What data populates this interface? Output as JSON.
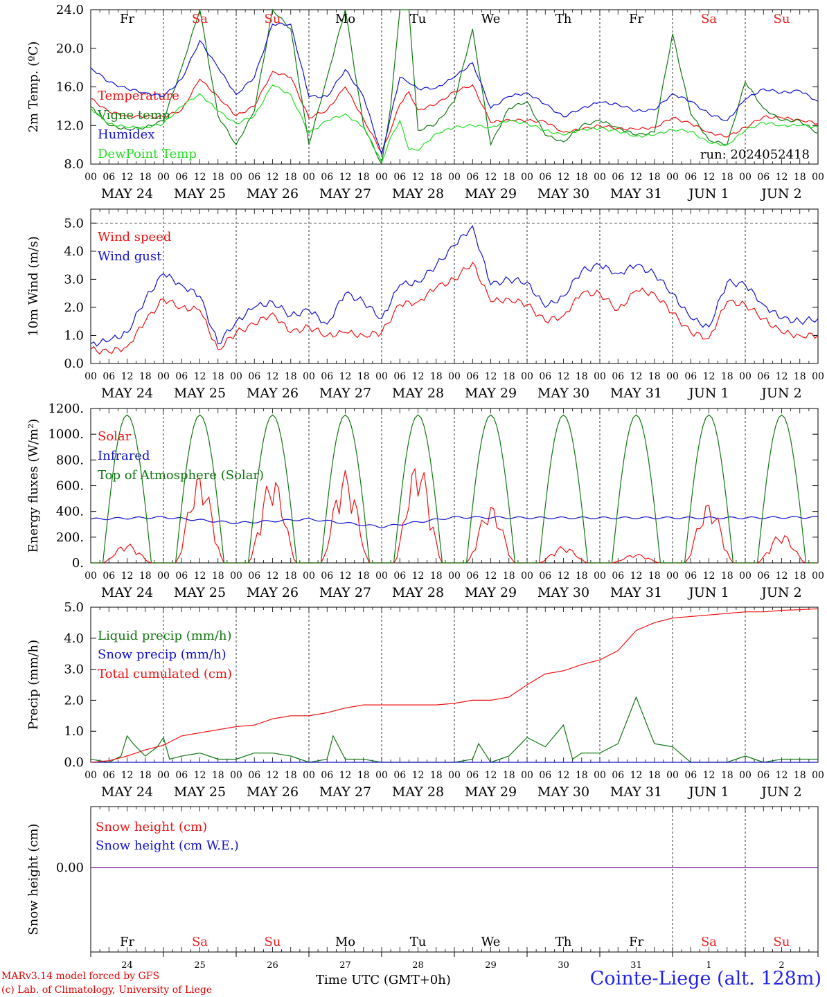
{
  "footer": {
    "credit_line1": "MARv3.14 model forced by GFS",
    "credit_line2": "(c) Lab. of Climatology, University of Liege",
    "station": "Cointe-Liege (alt. 128m)",
    "x_axis_title": "Time UTC (GMT+0h)"
  },
  "time_axis": {
    "hour_ticks": [
      "00",
      "06",
      "12",
      "18"
    ],
    "end_tick": "00",
    "dates": [
      "MAY 24",
      "MAY 25",
      "MAY 26",
      "MAY 27",
      "MAY 28",
      "MAY 29",
      "MAY 30",
      "MAY 31",
      "JUN  1",
      "JUN  2"
    ],
    "weekdays": [
      "Fr",
      "Sa",
      "Su",
      "Mo",
      "Tu",
      "We",
      "Th",
      "Fr",
      "Sa",
      "Su"
    ],
    "weekend_color": "#ee2020",
    "weekday_color": "#000000",
    "day_numbers": [
      "24",
      "25",
      "26",
      "27",
      "28",
      "29",
      "30",
      "31",
      "1",
      "2"
    ]
  },
  "chart_data": [
    {
      "id": "temperature",
      "type": "line",
      "ylabel": "2m Temp. (ºC)",
      "ylim": [
        8.0,
        24.0
      ],
      "yticks": [
        "8.0",
        "12.0",
        "16.0",
        "20.0",
        "24.0"
      ],
      "annotation": "run: 2024052418",
      "grid": "vertical day separators (dotted)",
      "legend_position": "left",
      "x_unit": "hours since MAY 24 00 UTC",
      "series": [
        {
          "name": "Temperature",
          "color": "#ee1111",
          "x": [
            0,
            6,
            12,
            18,
            24,
            30,
            36,
            42,
            48,
            54,
            60,
            66,
            72,
            78,
            84,
            90,
            96,
            99,
            102,
            105,
            108,
            114,
            120,
            126,
            132,
            138,
            144,
            150,
            156,
            162,
            168,
            174,
            180,
            186,
            192,
            198,
            204,
            210,
            216,
            222,
            228,
            234,
            240
          ],
          "y": [
            14.8,
            13.4,
            13.0,
            12.9,
            12.9,
            13.6,
            16.8,
            15.0,
            13.0,
            14.0,
            17.6,
            17.0,
            12.8,
            13.6,
            16.0,
            12.7,
            9.2,
            11.5,
            14.2,
            15.5,
            13.6,
            14.2,
            15.5,
            16.2,
            12.3,
            12.6,
            12.5,
            12.4,
            11.3,
            11.6,
            12.0,
            11.7,
            11.6,
            11.8,
            12.8,
            12.2,
            11.3,
            10.8,
            11.8,
            12.9,
            12.8,
            12.6,
            12.2
          ]
        },
        {
          "name": "Vigne temp",
          "color": "#117711",
          "x": [
            0,
            6,
            12,
            18,
            24,
            30,
            36,
            42,
            48,
            54,
            60,
            66,
            72,
            78,
            84,
            90,
            96,
            99,
            102,
            105,
            108,
            114,
            120,
            126,
            132,
            138,
            144,
            150,
            156,
            162,
            168,
            174,
            180,
            186,
            192,
            198,
            204,
            210,
            216,
            222,
            228,
            234,
            240
          ],
          "y": [
            14.0,
            12.0,
            11.6,
            11.8,
            12.5,
            18.0,
            24.0,
            13.0,
            10.0,
            13.5,
            24.0,
            22.0,
            10.0,
            17.0,
            24.0,
            12.0,
            8.0,
            14.0,
            24.0,
            24.0,
            11.5,
            12.2,
            14.5,
            22.0,
            10.0,
            13.8,
            14.5,
            11.0,
            10.3,
            12.0,
            12.5,
            11.8,
            11.0,
            11.3,
            21.5,
            13.2,
            10.5,
            10.0,
            16.5,
            13.8,
            12.5,
            12.5,
            11.2
          ]
        },
        {
          "name": "Humidex",
          "color": "#1111cc",
          "x": [
            0,
            6,
            12,
            18,
            24,
            30,
            36,
            42,
            48,
            54,
            60,
            66,
            72,
            78,
            84,
            90,
            96,
            99,
            102,
            105,
            108,
            114,
            120,
            126,
            132,
            138,
            144,
            150,
            156,
            162,
            168,
            174,
            180,
            186,
            192,
            198,
            204,
            210,
            216,
            222,
            228,
            234,
            240
          ],
          "y": [
            18.0,
            16.5,
            15.8,
            15.4,
            15.0,
            16.8,
            20.8,
            18.0,
            15.2,
            17.0,
            22.5,
            22.5,
            15.0,
            15.0,
            17.8,
            15.0,
            9.0,
            13.0,
            17.0,
            16.4,
            15.8,
            15.9,
            17.0,
            18.5,
            13.8,
            15.0,
            15.4,
            14.2,
            12.9,
            13.8,
            14.4,
            14.2,
            13.5,
            13.6,
            15.3,
            14.5,
            13.2,
            12.5,
            14.7,
            15.8,
            15.4,
            15.6,
            14.5
          ]
        },
        {
          "name": "DewPoint Temp",
          "color": "#22dd22",
          "x": [
            0,
            6,
            12,
            18,
            24,
            30,
            36,
            42,
            48,
            54,
            60,
            66,
            72,
            78,
            84,
            90,
            96,
            99,
            102,
            105,
            108,
            114,
            120,
            126,
            132,
            138,
            144,
            150,
            156,
            162,
            168,
            174,
            180,
            186,
            192,
            198,
            204,
            210,
            216,
            222,
            228,
            234,
            240
          ],
          "y": [
            13.8,
            12.2,
            11.8,
            11.8,
            12.2,
            14.0,
            15.3,
            13.5,
            12.2,
            13.0,
            16.2,
            15.2,
            11.2,
            12.5,
            13.2,
            11.8,
            8.2,
            10.8,
            12.5,
            9.5,
            9.4,
            11.2,
            11.8,
            12.0,
            11.8,
            12.5,
            12.2,
            11.5,
            11.0,
            11.6,
            11.7,
            11.4,
            10.9,
            11.0,
            11.6,
            11.4,
            10.2,
            10.0,
            11.5,
            12.3,
            12.0,
            12.0,
            11.8
          ]
        }
      ]
    },
    {
      "id": "wind",
      "type": "line",
      "ylabel": "10m Wind (m/s)",
      "ylim": [
        0.0,
        5.5
      ],
      "yticks": [
        "0.0",
        "1.0",
        "2.0",
        "3.0",
        "4.0",
        "5.0"
      ],
      "reference_line": 5.0,
      "legend_position": "left",
      "series": [
        {
          "name": "Wind speed",
          "color": "#ee1111",
          "x": [
            0,
            6,
            12,
            18,
            24,
            30,
            36,
            42,
            48,
            54,
            60,
            66,
            72,
            78,
            84,
            90,
            96,
            102,
            108,
            114,
            120,
            126,
            132,
            138,
            144,
            150,
            156,
            162,
            168,
            174,
            180,
            186,
            192,
            198,
            204,
            210,
            216,
            222,
            228,
            234,
            240
          ],
          "y": [
            0.5,
            0.4,
            0.6,
            1.5,
            2.3,
            2.0,
            1.9,
            0.5,
            1.1,
            1.4,
            1.8,
            1.1,
            1.3,
            1.0,
            1.1,
            1.0,
            1.1,
            2.1,
            2.2,
            2.7,
            3.0,
            3.6,
            2.2,
            2.3,
            2.1,
            1.5,
            1.7,
            2.5,
            2.5,
            1.9,
            2.6,
            2.5,
            1.8,
            1.1,
            0.9,
            2.2,
            2.1,
            1.6,
            1.1,
            1.0,
            1.0
          ]
        },
        {
          "name": "Wind gust",
          "color": "#1111cc",
          "x": [
            0,
            6,
            12,
            18,
            24,
            30,
            36,
            42,
            48,
            54,
            60,
            66,
            72,
            78,
            84,
            90,
            96,
            102,
            108,
            114,
            120,
            126,
            132,
            138,
            144,
            150,
            156,
            162,
            168,
            174,
            180,
            186,
            192,
            198,
            204,
            210,
            216,
            222,
            228,
            234,
            240
          ],
          "y": [
            0.7,
            0.8,
            1.1,
            2.3,
            3.2,
            2.8,
            2.4,
            0.7,
            1.5,
            2.0,
            2.2,
            1.7,
            1.9,
            1.4,
            2.5,
            2.2,
            1.6,
            2.8,
            2.9,
            3.5,
            4.2,
            4.9,
            2.8,
            3.0,
            2.9,
            2.0,
            2.4,
            3.3,
            3.5,
            3.2,
            3.5,
            3.2,
            2.5,
            1.6,
            1.3,
            2.9,
            2.8,
            2.1,
            1.6,
            1.5,
            1.6
          ]
        }
      ]
    },
    {
      "id": "energy",
      "type": "line",
      "ylabel": "Energy fluxes (W/m²)",
      "ylim": [
        0,
        1200
      ],
      "yticks": [
        "0.",
        "200.",
        "400.",
        "600.",
        "800.",
        "1000.",
        "1200."
      ],
      "legend_position": "left",
      "series": [
        {
          "name": "Solar",
          "color": "#ee1111",
          "daily_peak": [
            150,
            690,
            680,
            720,
            800,
            450,
            130,
            70,
            470,
            230
          ]
        },
        {
          "name": "Infrared",
          "color": "#1111cc",
          "x": [
            0,
            24,
            48,
            72,
            96,
            120,
            144,
            168,
            192,
            216,
            240
          ],
          "y": [
            340,
            355,
            310,
            340,
            280,
            355,
            350,
            350,
            350,
            350,
            355
          ]
        },
        {
          "name": "Top of Atmosphere (Solar)",
          "color": "#117711",
          "daily_peak": [
            1150,
            1150,
            1150,
            1150,
            1150,
            1150,
            1150,
            1150,
            1150,
            1150
          ]
        }
      ]
    },
    {
      "id": "precip",
      "type": "line",
      "ylabel": "Precip (mm/h)",
      "ylim": [
        0.0,
        5.0
      ],
      "yticks": [
        "0.0",
        "1.0",
        "2.0",
        "3.0",
        "4.0",
        "5.0"
      ],
      "legend_position": "left",
      "series": [
        {
          "name": "Liquid precip (mm/h)",
          "color": "#117711",
          "x": [
            0,
            6,
            10,
            12,
            14,
            18,
            22,
            24,
            26,
            30,
            36,
            42,
            48,
            54,
            60,
            66,
            72,
            78,
            80,
            84,
            90,
            96,
            102,
            108,
            114,
            120,
            126,
            128,
            132,
            138,
            144,
            150,
            156,
            159,
            162,
            168,
            174,
            180,
            186,
            192,
            198,
            204,
            210,
            216,
            222,
            228,
            234,
            240
          ],
          "y": [
            0.1,
            0.0,
            0.2,
            0.85,
            0.6,
            0.2,
            0.5,
            0.8,
            0.1,
            0.2,
            0.3,
            0.1,
            0.1,
            0.3,
            0.3,
            0.2,
            0.0,
            0.1,
            0.85,
            0.1,
            0.1,
            0.0,
            0.0,
            0.0,
            0.0,
            0.0,
            0.1,
            0.6,
            0.0,
            0.2,
            0.8,
            0.5,
            1.2,
            0.1,
            0.3,
            0.3,
            0.6,
            2.1,
            0.6,
            0.5,
            0.0,
            0.0,
            0.0,
            0.2,
            0.0,
            0.1,
            0.1,
            0.1
          ]
        },
        {
          "name": "Snow precip (mm/h)",
          "color": "#1111cc",
          "x": [
            0,
            240
          ],
          "y": [
            0,
            0
          ]
        },
        {
          "name": "Total cumulated (cm)",
          "color": "#ee1111",
          "x": [
            0,
            6,
            12,
            18,
            24,
            30,
            36,
            42,
            48,
            54,
            60,
            66,
            72,
            78,
            84,
            90,
            96,
            102,
            108,
            114,
            120,
            126,
            132,
            138,
            144,
            150,
            156,
            162,
            168,
            174,
            180,
            186,
            192,
            198,
            204,
            210,
            216,
            222,
            228,
            234,
            240
          ],
          "y": [
            0.0,
            0.05,
            0.2,
            0.4,
            0.55,
            0.85,
            0.95,
            1.05,
            1.15,
            1.2,
            1.4,
            1.5,
            1.5,
            1.6,
            1.75,
            1.85,
            1.85,
            1.85,
            1.85,
            1.85,
            1.9,
            2.0,
            2.0,
            2.1,
            2.5,
            2.85,
            2.95,
            3.15,
            3.3,
            3.6,
            4.25,
            4.5,
            4.65,
            4.7,
            4.75,
            4.8,
            4.85,
            4.85,
            4.9,
            4.92,
            4.95
          ]
        }
      ]
    },
    {
      "id": "snow",
      "type": "line",
      "ylabel": "Snow height (cm)",
      "yticks": [
        "0.00"
      ],
      "legend_position": "left",
      "series": [
        {
          "name": "Snow height (cm)",
          "color": "#ee1111",
          "x": [
            0,
            240
          ],
          "y": [
            0,
            0
          ]
        },
        {
          "name": "Snow height (cm W.E.)",
          "color": "#1111cc",
          "x": [
            0,
            240
          ],
          "y": [
            0,
            0
          ]
        }
      ]
    }
  ]
}
